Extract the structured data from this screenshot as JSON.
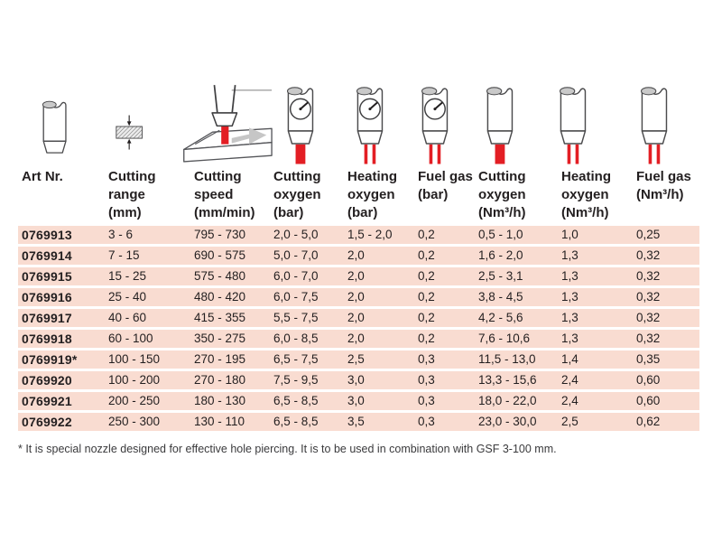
{
  "colors": {
    "row_background": "#f9dcd1",
    "accent_red": "#e31e24",
    "text": "#231f20",
    "icon_outline": "#4b4b4d",
    "icon_shade_gray": "#c9c9c9",
    "arrow_gray": "#c6c6c6"
  },
  "table": {
    "columns": [
      {
        "id": "art_nr",
        "label": "Art Nr.",
        "unit": "",
        "icon": "nozzle-plain-icon"
      },
      {
        "id": "cutting_range",
        "label": "Cutting range",
        "unit": "(mm)",
        "icon": "material-thickness-icon"
      },
      {
        "id": "cutting_speed",
        "label": "Cutting speed",
        "unit": "(mm/min)",
        "icon": "cutting-speed-icon"
      },
      {
        "id": "cutting_oxygen_bar",
        "label": "Cutting oxygen",
        "unit": "(bar)",
        "icon": "gauge-single-flow-icon"
      },
      {
        "id": "heating_oxygen_bar",
        "label": "Heating oxygen",
        "unit": "(bar)",
        "icon": "gauge-double-flow-icon"
      },
      {
        "id": "fuel_gas_bar",
        "label": "Fuel gas",
        "unit": "(bar)",
        "icon": "gauge-double-flow-icon"
      },
      {
        "id": "cutting_oxygen_nm3h",
        "label": "Cutting oxygen",
        "unit": "(Nm³/h)",
        "icon": "nozzle-single-flow-icon"
      },
      {
        "id": "heating_oxygen_nm3h",
        "label": "Heating oxygen",
        "unit": "(Nm³/h)",
        "icon": "nozzle-double-flow-icon"
      },
      {
        "id": "fuel_gas_nm3h",
        "label": "Fuel gas",
        "unit": "(Nm³/h)",
        "icon": "nozzle-double-flow-icon"
      }
    ],
    "rows": [
      [
        "0769913",
        "3 - 6",
        "795 - 730",
        "2,0 - 5,0",
        "1,5 - 2,0",
        "0,2",
        "0,5 - 1,0",
        "1,0",
        "0,25"
      ],
      [
        "0769914",
        "7 - 15",
        "690 - 575",
        "5,0 - 7,0",
        "2,0",
        "0,2",
        "1,6 - 2,0",
        "1,3",
        "0,32"
      ],
      [
        "0769915",
        "15 - 25",
        "575 - 480",
        "6,0 - 7,0",
        "2,0",
        "0,2",
        "2,5 - 3,1",
        "1,3",
        "0,32"
      ],
      [
        "0769916",
        "25 - 40",
        "480 - 420",
        "6,0 - 7,5",
        "2,0",
        "0,2",
        "3,8 - 4,5",
        "1,3",
        "0,32"
      ],
      [
        "0769917",
        "40 - 60",
        "415 - 355",
        "5,5 - 7,5",
        "2,0",
        "0,2",
        "4,2 - 5,6",
        "1,3",
        "0,32"
      ],
      [
        "0769918",
        "60 - 100",
        "350 - 275",
        "6,0 - 8,5",
        "2,0",
        "0,2",
        "7,6 - 10,6",
        "1,3",
        "0,32"
      ],
      [
        "0769919*",
        "100 - 150",
        "270 - 195",
        "6,5 - 7,5",
        "2,5",
        "0,3",
        "11,5 - 13,0",
        "1,4",
        "0,35"
      ],
      [
        "0769920",
        "100 - 200",
        "270 - 180",
        "7,5 - 9,5",
        "3,0",
        "0,3",
        "13,3 - 15,6",
        "2,4",
        "0,60"
      ],
      [
        "0769921",
        "200 - 250",
        "180 - 130",
        "6,5 - 8,5",
        "3,0",
        "0,3",
        "18,0 - 22,0",
        "2,4",
        "0,60"
      ],
      [
        "0769922",
        "250 - 300",
        "130 - 110",
        "6,5 - 8,5",
        "3,5",
        "0,3",
        "23,0 - 30,0",
        "2,5",
        "0,62"
      ]
    ]
  },
  "footnote": "* It is special nozzle designed for effective hole piercing. It is to be used in combination with GSF 3-100 mm."
}
